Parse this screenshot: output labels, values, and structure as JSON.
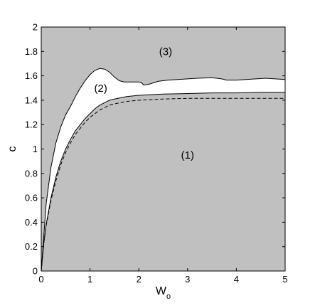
{
  "chart_data": {
    "type": "area",
    "title": "",
    "xlabel": "W",
    "xlabel_subscript": "o",
    "ylabel": "c",
    "xlim": [
      0,
      5
    ],
    "ylim": [
      0,
      2
    ],
    "xticks": [
      "0",
      "1",
      "2",
      "3",
      "4",
      "5"
    ],
    "yticks": [
      "0",
      "0.2",
      "0.4",
      "0.6",
      "0.8",
      "1",
      "1.2",
      "1.4",
      "1.6",
      "1.8",
      "2"
    ],
    "grid": false,
    "colors": {
      "shaded": "#c0c0c0",
      "unshaded": "#ffffff",
      "line": "#000000"
    },
    "regions": [
      {
        "label": "(1)",
        "x": 3.0,
        "y": 0.95
      },
      {
        "label": "(2)",
        "x": 1.22,
        "y": 1.5
      },
      {
        "label": "(3)",
        "x": 2.55,
        "y": 1.8
      }
    ],
    "series": [
      {
        "style": "solid",
        "x": [
          0,
          0.05,
          0.1,
          0.2,
          0.3,
          0.4,
          0.5,
          0.6,
          0.7,
          0.8,
          0.9,
          1.0,
          1.1,
          1.2,
          1.3,
          1.4,
          1.5,
          1.75,
          2.0,
          2.5,
          3.0,
          3.5,
          4.0,
          4.5,
          5.0
        ],
        "values": [
          0,
          0.22,
          0.38,
          0.6,
          0.77,
          0.9,
          1.0,
          1.08,
          1.15,
          1.2,
          1.25,
          1.29,
          1.33,
          1.36,
          1.38,
          1.4,
          1.41,
          1.43,
          1.44,
          1.45,
          1.455,
          1.46,
          1.46,
          1.465,
          1.465
        ]
      },
      {
        "style": "solid",
        "x": [
          0,
          0.1,
          0.2,
          0.3,
          0.4,
          0.5,
          0.6,
          0.7,
          0.8,
          0.9,
          1.0,
          1.1,
          1.2,
          1.3,
          1.4,
          1.5,
          1.6,
          1.7,
          1.8,
          1.9,
          2.0,
          2.05,
          2.1,
          2.2,
          2.4,
          2.6,
          2.8,
          3.0,
          3.2,
          3.5,
          3.7,
          3.8,
          4.0,
          4.2,
          4.4,
          4.6,
          4.8,
          5.0
        ],
        "values": [
          0,
          0.55,
          0.85,
          1.05,
          1.18,
          1.28,
          1.35,
          1.43,
          1.5,
          1.56,
          1.61,
          1.645,
          1.66,
          1.655,
          1.63,
          1.59,
          1.56,
          1.55,
          1.55,
          1.55,
          1.55,
          1.545,
          1.525,
          1.53,
          1.555,
          1.565,
          1.57,
          1.575,
          1.58,
          1.585,
          1.575,
          1.565,
          1.565,
          1.57,
          1.575,
          1.58,
          1.575,
          1.57
        ]
      },
      {
        "style": "dashed",
        "x": [
          0,
          0.05,
          0.1,
          0.2,
          0.3,
          0.4,
          0.5,
          0.6,
          0.7,
          0.8,
          0.9,
          1.0,
          1.1,
          1.2,
          1.3,
          1.4,
          1.5,
          1.75,
          2.0,
          2.5,
          3.0,
          3.5,
          4.0,
          4.5,
          5.0
        ],
        "values": [
          0,
          0.22,
          0.37,
          0.58,
          0.74,
          0.87,
          0.97,
          1.05,
          1.12,
          1.17,
          1.22,
          1.26,
          1.29,
          1.32,
          1.34,
          1.36,
          1.37,
          1.39,
          1.4,
          1.41,
          1.415,
          1.415,
          1.415,
          1.415,
          1.415
        ]
      }
    ]
  }
}
